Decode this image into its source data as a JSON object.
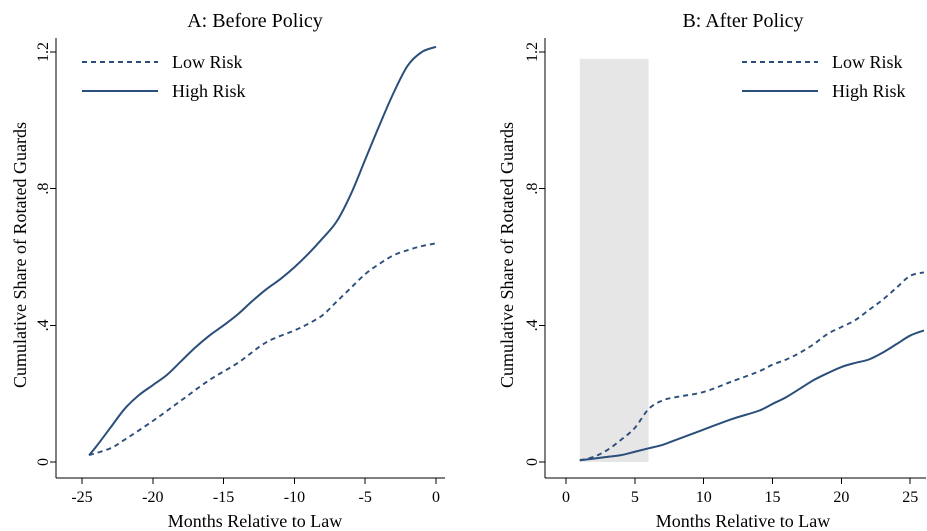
{
  "chart_data": [
    {
      "type": "line",
      "title": "A: Before Policy",
      "xlabel": "Months Relative to Law",
      "ylabel": "Cumulative Share of Rotated Guards",
      "xlim": [
        -25,
        0
      ],
      "ylim": [
        0,
        1.2
      ],
      "xticks": [
        -25,
        -20,
        -15,
        -10,
        -5,
        0
      ],
      "xtick_labels": [
        "-25",
        "-20",
        "-15",
        "-10",
        "-5",
        "0"
      ],
      "yticks": [
        0,
        0.4,
        0.8,
        1.2
      ],
      "ytick_labels": [
        "0",
        ".4",
        ".8",
        "1.2"
      ],
      "legend": "top-left",
      "grid": false,
      "series": [
        {
          "name": "Low Risk",
          "style": "dashed",
          "color": "#2b4f7a",
          "x": [
            -24.5,
            -23,
            -22,
            -20,
            -18,
            -16,
            -14,
            -12,
            -10,
            -9,
            -8,
            -7,
            -6,
            -5,
            -4,
            -3,
            -2,
            -1,
            0
          ],
          "y": [
            0.02,
            0.04,
            0.065,
            0.12,
            0.18,
            0.24,
            0.29,
            0.35,
            0.385,
            0.405,
            0.43,
            0.47,
            0.51,
            0.55,
            0.58,
            0.605,
            0.62,
            0.632,
            0.64
          ]
        },
        {
          "name": "High Risk",
          "style": "solid",
          "color": "#2b4f7a",
          "x": [
            -24.5,
            -24,
            -23,
            -22,
            -21,
            -20,
            -19,
            -18,
            -17,
            -16,
            -15,
            -14,
            -13,
            -12,
            -11,
            -10,
            -9,
            -8,
            -7,
            -6,
            -5,
            -4,
            -3,
            -2,
            -1,
            0
          ],
          "y": [
            0.02,
            0.045,
            0.1,
            0.155,
            0.195,
            0.225,
            0.255,
            0.295,
            0.335,
            0.37,
            0.4,
            0.432,
            0.47,
            0.505,
            0.535,
            0.57,
            0.61,
            0.655,
            0.705,
            0.785,
            0.885,
            0.985,
            1.08,
            1.16,
            1.2,
            1.215
          ]
        }
      ]
    },
    {
      "type": "line",
      "title": "B: After Policy",
      "xlabel": "Months Relative to Law",
      "ylabel": "Cumulative Share of Rotated Guards",
      "xlim": [
        0,
        26
      ],
      "ylim": [
        0,
        1.2
      ],
      "xticks": [
        0,
        5,
        10,
        15,
        20,
        25
      ],
      "xtick_labels": [
        "0",
        "5",
        "10",
        "15",
        "20",
        "25"
      ],
      "yticks": [
        0,
        0.4,
        0.8,
        1.2
      ],
      "ytick_labels": [
        "0",
        ".4",
        ".8",
        "1.2"
      ],
      "legend": "top-right",
      "grid": false,
      "shaded_region": {
        "x": [
          1,
          6
        ],
        "y": [
          0,
          1.18
        ],
        "color": "#e6e6e6"
      },
      "series": [
        {
          "name": "Low Risk",
          "style": "dashed",
          "color": "#2b4f7a",
          "x": [
            1,
            2,
            3,
            4,
            5,
            6,
            7,
            8,
            10,
            12,
            14,
            15,
            16,
            17,
            18,
            19,
            20,
            21,
            22,
            23,
            24,
            25,
            26
          ],
          "y": [
            0.005,
            0.015,
            0.035,
            0.065,
            0.1,
            0.155,
            0.18,
            0.19,
            0.205,
            0.235,
            0.265,
            0.285,
            0.3,
            0.32,
            0.345,
            0.375,
            0.395,
            0.415,
            0.445,
            0.475,
            0.51,
            0.545,
            0.555
          ]
        },
        {
          "name": "High Risk",
          "style": "solid",
          "color": "#2b4f7a",
          "x": [
            1,
            2,
            3,
            4,
            5,
            6,
            7,
            8,
            10,
            12,
            14,
            15,
            16,
            17,
            18,
            19,
            20,
            21,
            22,
            23,
            24,
            25,
            26
          ],
          "y": [
            0.005,
            0.01,
            0.015,
            0.02,
            0.03,
            0.04,
            0.05,
            0.065,
            0.095,
            0.125,
            0.15,
            0.17,
            0.19,
            0.215,
            0.24,
            0.26,
            0.278,
            0.29,
            0.3,
            0.32,
            0.345,
            0.37,
            0.385
          ]
        }
      ]
    }
  ]
}
